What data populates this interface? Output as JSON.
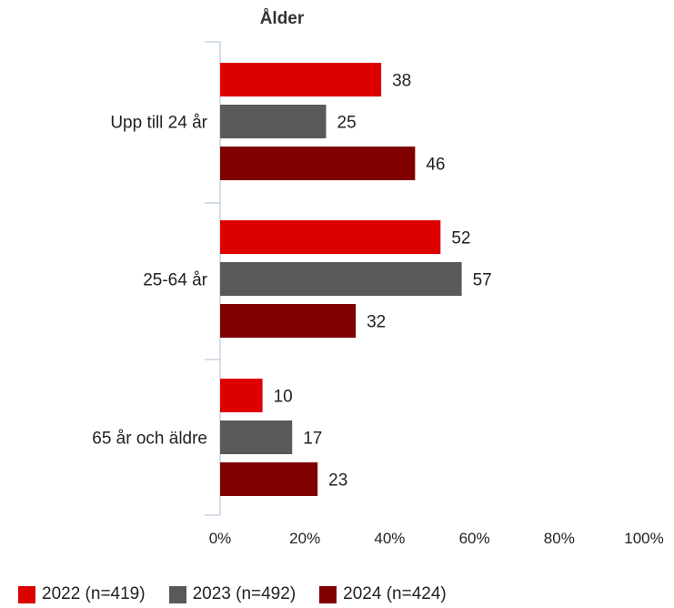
{
  "chart_data": {
    "type": "bar",
    "orientation": "horizontal",
    "title": "Ålder",
    "categories": [
      "Upp till 24 år",
      "25-64 år",
      "65 år och äldre"
    ],
    "series": [
      {
        "name": "2022 (n=419)",
        "values": [
          38,
          52,
          10
        ],
        "color": "#dd0000"
      },
      {
        "name": "2023 (n=492)",
        "values": [
          25,
          57,
          17
        ],
        "color": "#595959"
      },
      {
        "name": "2024 (n=424)",
        "values": [
          46,
          32,
          23
        ],
        "color": "#800000"
      }
    ],
    "x_ticks": [
      "0%",
      "20%",
      "40%",
      "60%",
      "80%",
      "100%"
    ],
    "xlim": [
      0,
      100
    ],
    "grid": false,
    "data_labels": true,
    "legend_position": "bottom-left"
  }
}
